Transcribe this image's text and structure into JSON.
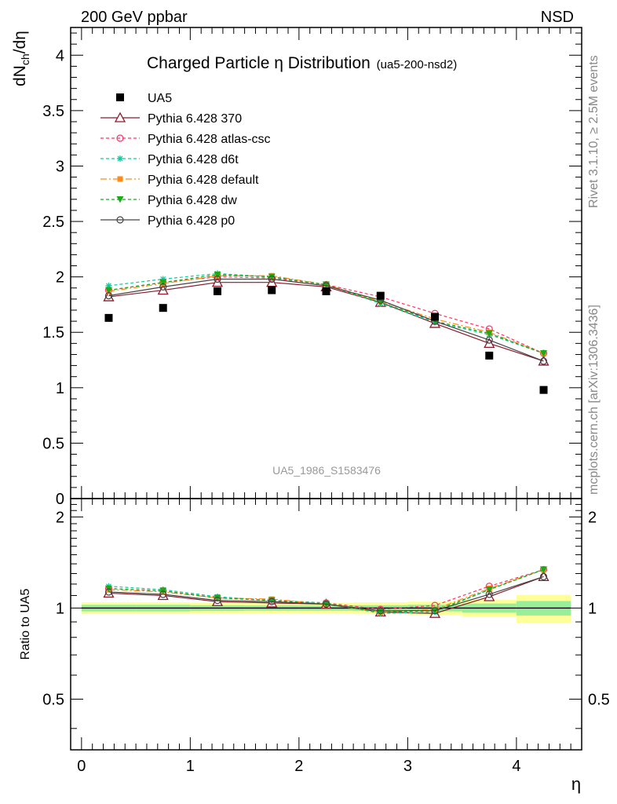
{
  "header": {
    "left": "200 GeV ppbar",
    "right": "NSD"
  },
  "side_text": {
    "rivet": "Rivet 3.1.10, ≥ 2.5M events",
    "mcplots": "mcplots.cern.ch [arXiv:1306.3436]"
  },
  "chart_data": [
    {
      "type": "line",
      "title": "Charged Particle η Distribution",
      "subtitle": "(ua5-200-nsd2)",
      "analysis_label": "UA5_1986_S1583476",
      "ylabel": "dN_ch/dη",
      "ylim": [
        0,
        4.25
      ],
      "xlim": [
        -0.1,
        4.6
      ],
      "x_ticks": [
        0,
        1,
        2,
        3,
        4
      ],
      "y_ticks": [
        0,
        0.5,
        1,
        1.5,
        2,
        2.5,
        3,
        3.5,
        4
      ],
      "y_tick_labels": [
        "0",
        "0.5",
        "1",
        "1.5",
        "2",
        "2.5",
        "3",
        "3.5",
        "4"
      ],
      "x": [
        0.25,
        0.75,
        1.25,
        1.75,
        2.25,
        2.75,
        3.25,
        3.75,
        4.25
      ],
      "data": {
        "name": "UA5",
        "values": [
          1.63,
          1.72,
          1.87,
          1.88,
          1.87,
          1.83,
          1.64,
          1.29,
          0.98
        ],
        "color": "#000000"
      },
      "series": [
        {
          "name": "Pythia 6.428 370",
          "color": "#8b1a2b",
          "marker": "open-triangle",
          "dash": "solid",
          "values": [
            1.82,
            1.88,
            1.95,
            1.95,
            1.91,
            1.77,
            1.58,
            1.4,
            1.24
          ]
        },
        {
          "name": "Pythia 6.428 atlas-csc",
          "color": "#ff3366",
          "marker": "open-circle",
          "dash": "dashed",
          "values": [
            1.88,
            1.95,
            2.0,
            1.99,
            1.93,
            1.82,
            1.67,
            1.53,
            1.31
          ]
        },
        {
          "name": "Pythia 6.428 d6t",
          "color": "#11c9a0",
          "marker": "star",
          "dash": "dashed",
          "values": [
            1.92,
            1.98,
            2.03,
            2.0,
            1.93,
            1.76,
            1.59,
            1.48,
            1.31
          ]
        },
        {
          "name": "Pythia 6.428 default",
          "color": "#ff8c1a",
          "marker": "filled-square",
          "dash": "dashdot",
          "values": [
            1.87,
            1.94,
            2.01,
            2.01,
            1.93,
            1.78,
            1.62,
            1.5,
            1.31
          ]
        },
        {
          "name": "Pythia 6.428 dw",
          "color": "#1aaa1a",
          "marker": "filled-triangle-down",
          "dash": "dashed",
          "values": [
            1.88,
            1.95,
            2.02,
            2.0,
            1.93,
            1.77,
            1.6,
            1.49,
            1.31
          ]
        },
        {
          "name": "Pythia 6.428 p0",
          "color": "#444444",
          "marker": "open-circle",
          "dash": "solid",
          "values": [
            1.83,
            1.91,
            1.98,
            1.98,
            1.92,
            1.79,
            1.6,
            1.43,
            1.24
          ]
        }
      ]
    },
    {
      "type": "line",
      "title": "Ratio to UA5",
      "ylabel": "Ratio to UA5",
      "xlabel": "η",
      "ylim": [
        0.34,
        2.3
      ],
      "xlim": [
        -0.1,
        4.6
      ],
      "x_ticks": [
        0,
        1,
        2,
        3,
        4
      ],
      "x_tick_labels": [
        "0",
        "1",
        "2",
        "3",
        "4"
      ],
      "y_ticks": [
        0.5,
        1,
        2
      ],
      "y_tick_labels": [
        "0.5",
        "1",
        "2"
      ],
      "x": [
        0.25,
        0.75,
        1.25,
        1.75,
        2.25,
        2.75,
        3.25,
        3.75,
        4.25
      ],
      "band_edges": [
        0,
        0.5,
        1.0,
        1.5,
        2.0,
        2.5,
        3.0,
        3.5,
        4.0,
        4.5
      ],
      "green_band_halfwidth": [
        0.025,
        0.025,
        0.022,
        0.02,
        0.02,
        0.022,
        0.025,
        0.035,
        0.055
      ],
      "yellow_band_halfwidth": [
        0.045,
        0.045,
        0.04,
        0.04,
        0.04,
        0.045,
        0.05,
        0.065,
        0.105
      ],
      "series": [
        {
          "name": "Pythia 6.428 370",
          "color": "#8b1a2b",
          "marker": "open-triangle",
          "dash": "solid",
          "values": [
            1.12,
            1.1,
            1.05,
            1.04,
            1.03,
            0.97,
            0.96,
            1.09,
            1.27
          ]
        },
        {
          "name": "Pythia 6.428 atlas-csc",
          "color": "#ff3366",
          "marker": "open-circle",
          "dash": "dashed",
          "values": [
            1.16,
            1.14,
            1.08,
            1.06,
            1.04,
            0.99,
            1.02,
            1.18,
            1.34
          ]
        },
        {
          "name": "Pythia 6.428 d6t",
          "color": "#11c9a0",
          "marker": "star",
          "dash": "dashed",
          "values": [
            1.18,
            1.15,
            1.09,
            1.06,
            1.04,
            0.96,
            0.97,
            1.15,
            1.34
          ]
        },
        {
          "name": "Pythia 6.428 default",
          "color": "#ff8c1a",
          "marker": "filled-square",
          "dash": "dashdot",
          "values": [
            1.15,
            1.13,
            1.08,
            1.07,
            1.03,
            0.97,
            0.99,
            1.16,
            1.34
          ]
        },
        {
          "name": "Pythia 6.428 dw",
          "color": "#1aaa1a",
          "marker": "filled-triangle-down",
          "dash": "dashed",
          "values": [
            1.16,
            1.14,
            1.08,
            1.06,
            1.03,
            0.97,
            0.98,
            1.15,
            1.34
          ]
        },
        {
          "name": "Pythia 6.428 p0",
          "color": "#444444",
          "marker": "open-circle",
          "dash": "solid",
          "values": [
            1.13,
            1.11,
            1.06,
            1.05,
            1.03,
            0.98,
            0.98,
            1.11,
            1.27
          ]
        }
      ]
    }
  ]
}
